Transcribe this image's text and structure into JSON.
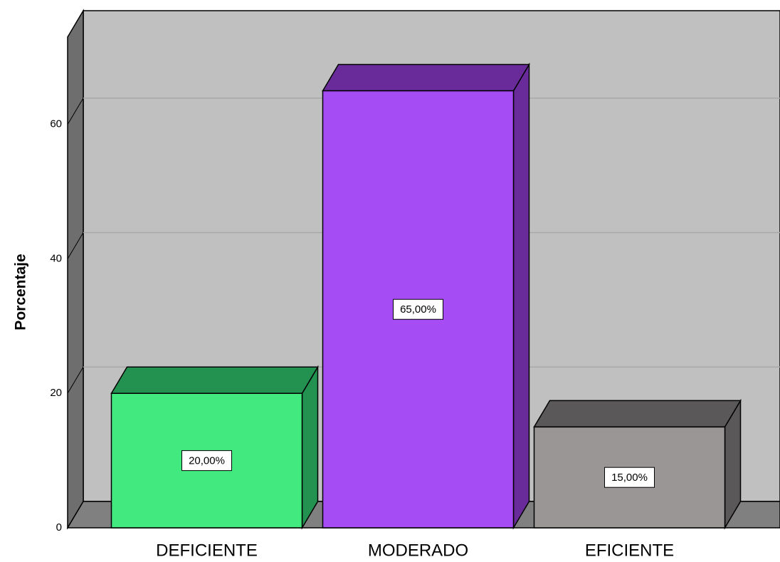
{
  "chart_data": {
    "type": "bar3d",
    "y_label": "Porcentaje",
    "categories": [
      "DEFICIENTE",
      "MODERADO",
      "EFICIENTE"
    ],
    "values": [
      20,
      65,
      15
    ],
    "value_labels": [
      "20,00%",
      "65,00%",
      "15,00%"
    ],
    "colors": [
      "#42e97e",
      "#a64cf5",
      "#9a9696"
    ],
    "side_colors": [
      "#23914f",
      "#6a2b9a",
      "#5a5858"
    ],
    "ylim": [
      0,
      73
    ],
    "yticks": [
      0,
      20,
      40,
      60
    ],
    "grid": true
  }
}
